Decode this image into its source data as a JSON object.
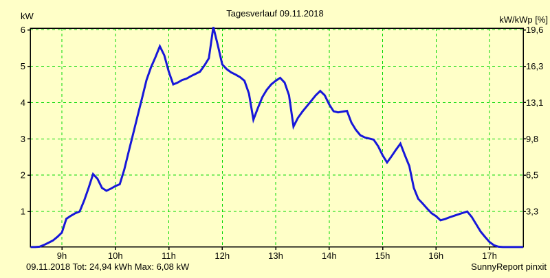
{
  "title": "Tagesverlauf 09.11.2018",
  "footer": {
    "summary": "09.11.2018 Tot: 24,94 kWh Max: 6,08 kW",
    "credit": "SunnyReport pinxit"
  },
  "colors": {
    "background": "#FFFFC8",
    "grid": "#00D800",
    "line": "#1717D9",
    "axis": "#000000",
    "footer_summary": "#1717D9"
  },
  "chart_data": {
    "type": "line",
    "title": "Tagesverlauf 09.11.2018",
    "ylabel_left": "kW",
    "ylabel_right": "kW/kWp [%]",
    "xlim": [
      8.408,
      17.633
    ],
    "ylim": [
      0,
      6
    ],
    "grid": true,
    "x_ticks": [
      {
        "t": 9,
        "label": "9h"
      },
      {
        "t": 10,
        "label": "10h"
      },
      {
        "t": 11,
        "label": "11h"
      },
      {
        "t": 12,
        "label": "12h"
      },
      {
        "t": 13,
        "label": "13h"
      },
      {
        "t": 14,
        "label": "14h"
      },
      {
        "t": 15,
        "label": "15h"
      },
      {
        "t": 16,
        "label": "16h"
      },
      {
        "t": 17,
        "label": "17h"
      }
    ],
    "y_ticks": [
      {
        "v": 1,
        "label_left": "1",
        "label_right": "3,3"
      },
      {
        "v": 2,
        "label_left": "2",
        "label_right": "6,5"
      },
      {
        "v": 3,
        "label_left": "3",
        "label_right": "9,8"
      },
      {
        "v": 4,
        "label_left": "4",
        "label_right": "13,1"
      },
      {
        "v": 5,
        "label_left": "5",
        "label_right": "16,3"
      },
      {
        "v": 6,
        "label_left": "6",
        "label_right": "19,6"
      }
    ],
    "total_kwh": "24,94",
    "max_kw": "6,08",
    "series": [
      {
        "name": "kW",
        "t0": 8.4167,
        "dt": 0.083333,
        "values": [
          0.02,
          0.02,
          0.03,
          0.08,
          0.14,
          0.2,
          0.3,
          0.42,
          0.8,
          0.88,
          0.95,
          1.0,
          1.3,
          1.65,
          2.03,
          1.9,
          1.65,
          1.57,
          1.63,
          1.7,
          1.75,
          2.15,
          2.65,
          3.14,
          3.63,
          4.12,
          4.62,
          4.97,
          5.25,
          5.55,
          5.3,
          4.85,
          4.5,
          4.55,
          4.62,
          4.66,
          4.73,
          4.79,
          4.85,
          5.02,
          5.22,
          6.08,
          5.58,
          5.05,
          4.92,
          4.83,
          4.77,
          4.7,
          4.6,
          4.25,
          3.53,
          3.85,
          4.15,
          4.35,
          4.5,
          4.6,
          4.68,
          4.55,
          4.2,
          3.34,
          3.58,
          3.75,
          3.9,
          4.05,
          4.2,
          4.32,
          4.2,
          3.95,
          3.76,
          3.73,
          3.75,
          3.77,
          3.45,
          3.25,
          3.1,
          3.04,
          3.01,
          2.98,
          2.8,
          2.55,
          2.35,
          2.52,
          2.7,
          2.87,
          2.55,
          2.25,
          1.65,
          1.35,
          1.22,
          1.08,
          0.95,
          0.87,
          0.76,
          0.79,
          0.84,
          0.88,
          0.92,
          0.96,
          1.0,
          0.85,
          0.65,
          0.45,
          0.3,
          0.16,
          0.07,
          0.03,
          0.02,
          0.02,
          0.02,
          0.02,
          0.02,
          0.02
        ]
      }
    ]
  }
}
